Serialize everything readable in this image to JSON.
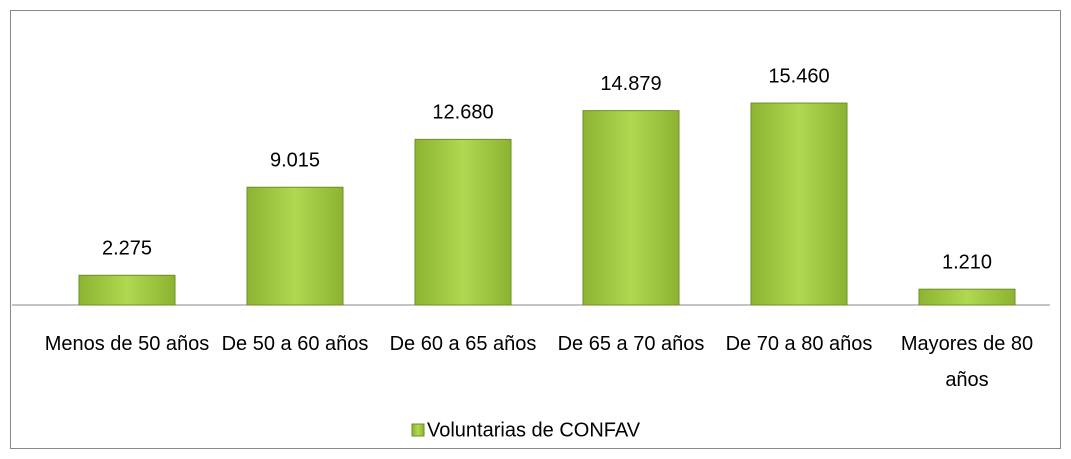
{
  "chart_data": {
    "type": "bar",
    "categories": [
      "Menos de 50 años",
      "De 50 a 60 años",
      "De 60 a 65 años",
      "De 65 a 70 años",
      "De 70 a 80 años",
      "Mayores de 80 años"
    ],
    "series": [
      {
        "name": "Voluntarias de CONFAV",
        "color": "#9dc33b",
        "values": [
          2275,
          9015,
          12680,
          14879,
          15460,
          1210
        ],
        "value_labels": [
          "2.275",
          "9.015",
          "12.680",
          "14.879",
          "15.460",
          "1.210"
        ]
      }
    ],
    "ylim": [
      0,
      16000
    ]
  }
}
